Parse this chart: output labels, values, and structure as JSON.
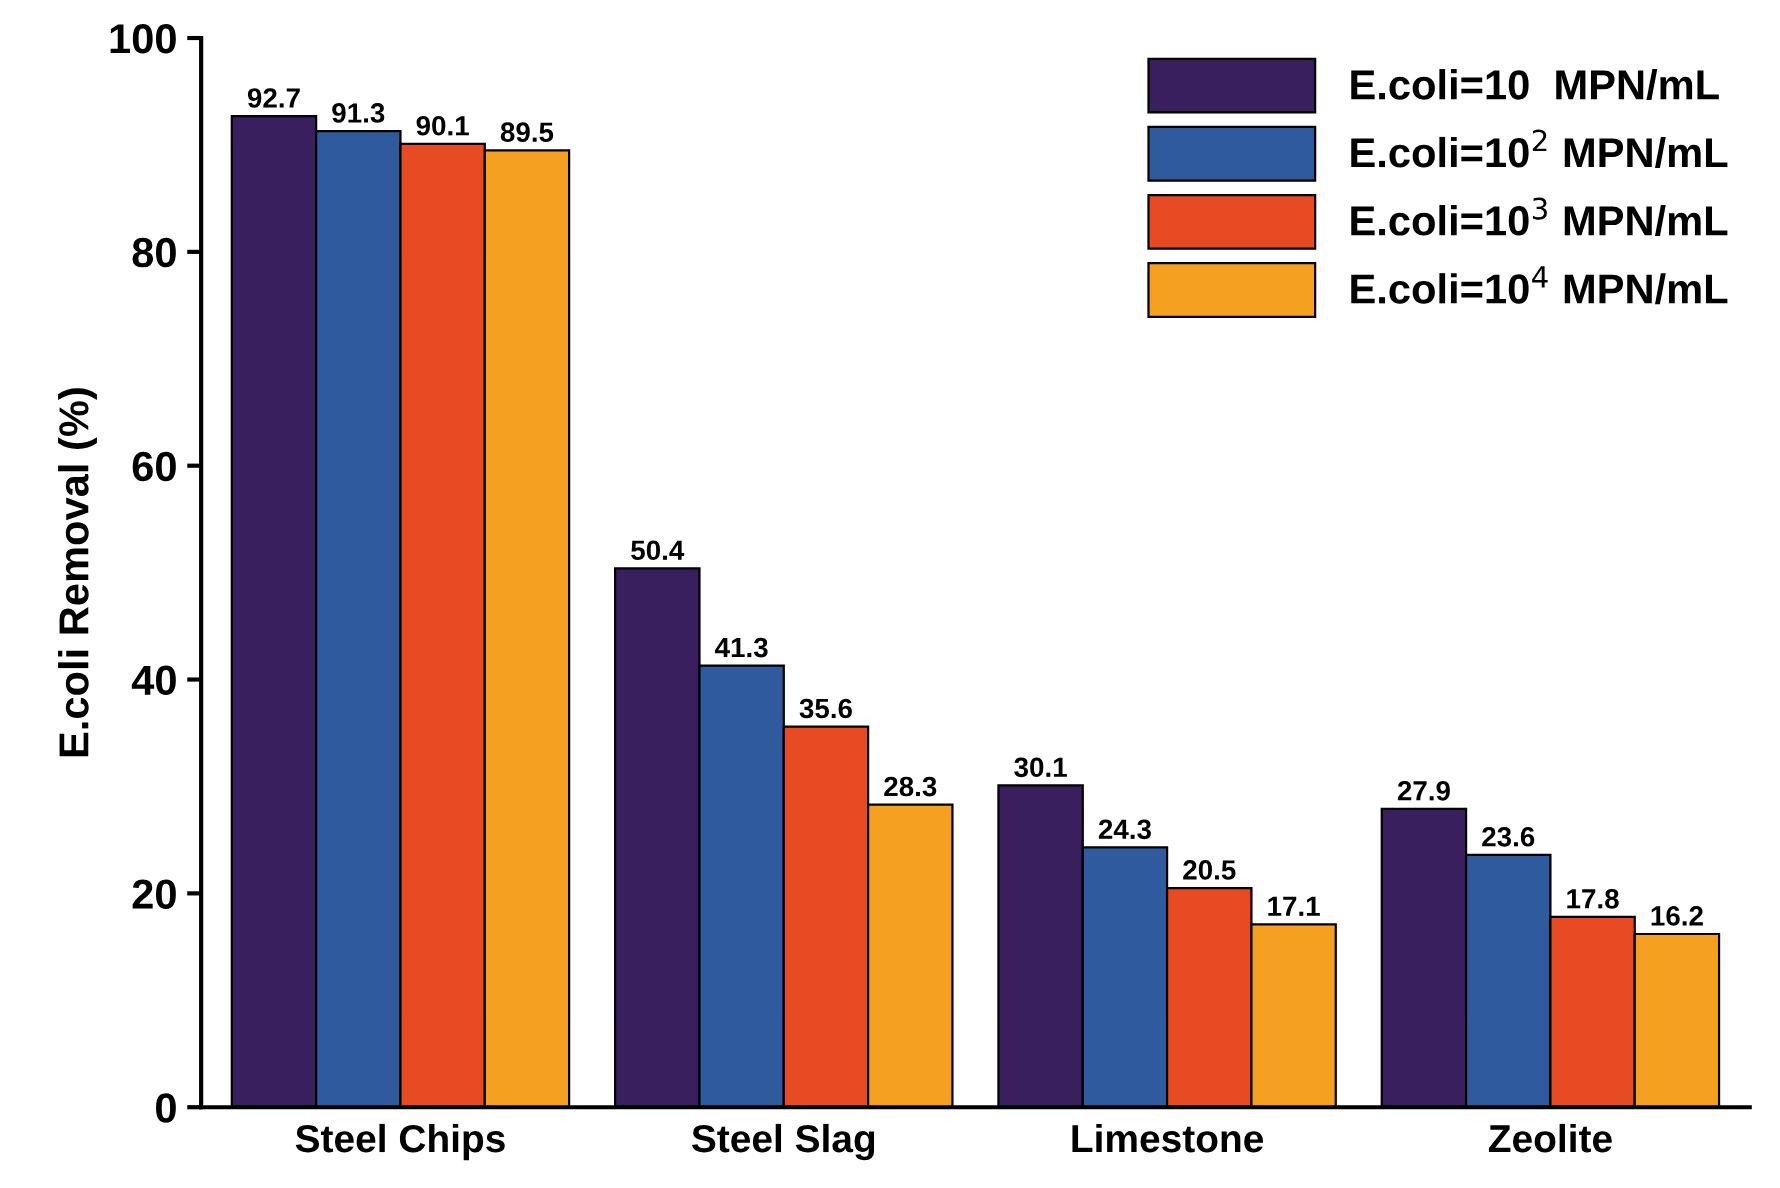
{
  "chart_data": {
    "type": "bar",
    "ylabel": "E.coli Removal (%)",
    "categories": [
      "Steel Chips",
      "Steel Slag",
      "Limestone",
      "Zeolite"
    ],
    "series": [
      {
        "name": "E.coli=10  MPN/mL",
        "color": "#3a1f5e",
        "values": [
          92.7,
          50.4,
          30.1,
          27.9
        ]
      },
      {
        "name": "E.coli=10$^{2}$ MPN/mL",
        "color": "#2f5b9e",
        "values": [
          91.3,
          41.3,
          24.3,
          23.6
        ]
      },
      {
        "name": "E.coli=10$^{3}$ MPN/mL",
        "color": "#e84a24",
        "values": [
          90.1,
          35.6,
          20.5,
          17.8
        ]
      },
      {
        "name": "E.coli=10$^{4}$ MPN/mL",
        "color": "#f5a020",
        "values": [
          89.5,
          28.3,
          17.1,
          16.2
        ]
      }
    ],
    "ylim": [
      0,
      100
    ],
    "yticks": [
      0,
      20,
      40,
      60,
      80,
      100
    ],
    "grid": false,
    "legend": "top right",
    "data_labels": true
  }
}
